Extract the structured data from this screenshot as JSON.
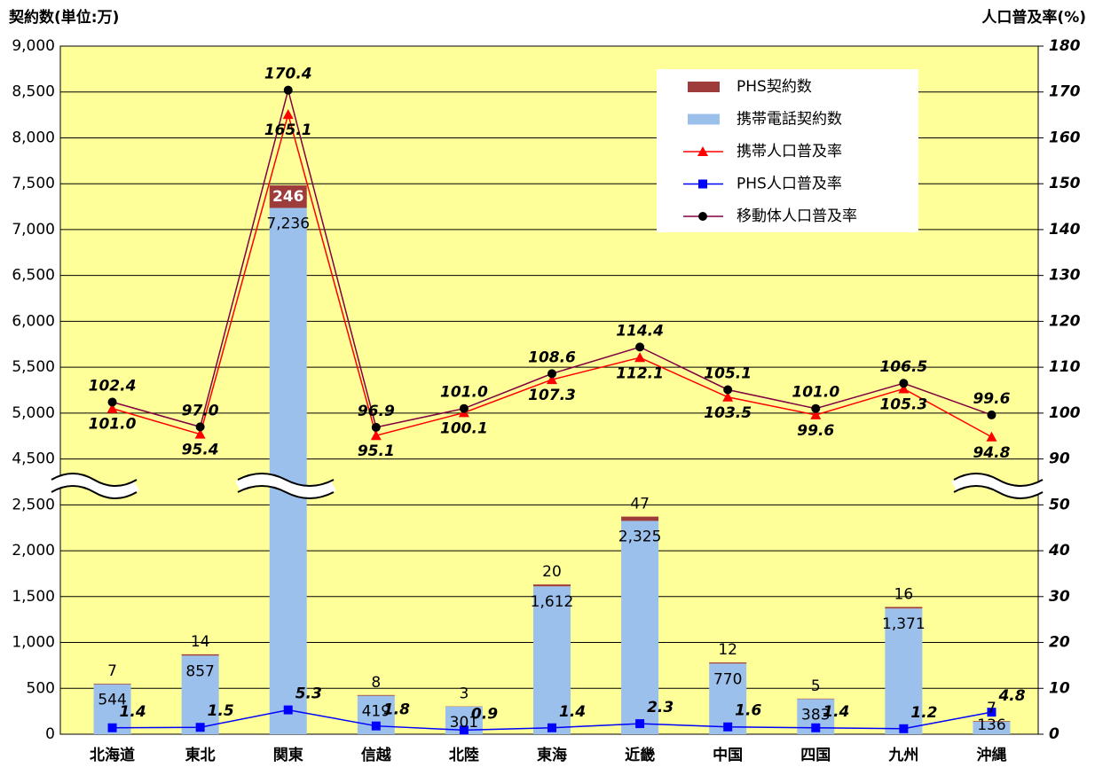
{
  "chart_data": {
    "type": "bar_line",
    "y_axis_title": "契約数(単位:万)",
    "y2_axis_title": "人口普及率(%)",
    "categories": [
      "北海道",
      "東北",
      "関東",
      "信越",
      "北陸",
      "東海",
      "近畿",
      "中国",
      "四国",
      "九州",
      "沖縄"
    ],
    "ylim": [
      0,
      9000
    ],
    "yticks": [
      0,
      500,
      {
        "value": 1000,
        "label": "1,000"
      },
      {
        "value": 1500,
        "label": "1,500"
      },
      {
        "value": 2000,
        "label": "2,000"
      },
      {
        "value": 2500,
        "label": "2,500"
      },
      {
        "value": 4500,
        "label": "4,500"
      },
      {
        "value": 5000,
        "label": "5,000"
      },
      {
        "value": 5500,
        "label": "5,500"
      },
      {
        "value": 6000,
        "label": "6,000"
      },
      {
        "value": 6500,
        "label": "6,500"
      },
      {
        "value": 7000,
        "label": "7,000"
      },
      {
        "value": 7500,
        "label": "7,500"
      },
      {
        "value": 8000,
        "label": "8,000"
      },
      {
        "value": 8500,
        "label": "8,500"
      },
      {
        "value": 9000,
        "label": "9,000"
      }
    ],
    "y_break": [
      2500,
      4500
    ],
    "y2lim": [
      0,
      180
    ],
    "y2ticks": [
      0,
      10,
      20,
      30,
      40,
      50,
      90,
      100,
      110,
      120,
      130,
      140,
      150,
      160,
      170,
      180
    ],
    "y2_break": [
      50,
      90
    ],
    "grid": true,
    "legend": "upper right",
    "series": [
      {
        "name": "PHS契約数",
        "kind": "bar",
        "stack": 1,
        "color": "#9e3b3b",
        "values": [
          7,
          14,
          246,
          8,
          3,
          20,
          47,
          12,
          5,
          16,
          7
        ]
      },
      {
        "name": "携帯電話契約数",
        "kind": "bar",
        "stack": 0,
        "color": "#9cc0ec",
        "values": [
          544,
          857,
          7236,
          419,
          301,
          1612,
          2325,
          770,
          383,
          1371,
          136
        ],
        "value_labels": [
          "544",
          "857",
          "7,236",
          "419",
          "301",
          "1,612",
          "2,325",
          "770",
          "383",
          "1,371",
          "136"
        ]
      },
      {
        "name": "携帯人口普及率",
        "kind": "line",
        "axis": "y2",
        "marker": "triangle",
        "color": "#ff0000",
        "values": [
          101.0,
          95.4,
          165.1,
          95.1,
          100.1,
          107.3,
          112.1,
          103.5,
          99.6,
          105.3,
          94.8
        ],
        "value_labels": [
          "101.0",
          "95.4",
          "165.1",
          "95.1",
          "100.1",
          "107.3",
          "112.1",
          "103.5",
          "99.6",
          "105.3",
          "94.8"
        ]
      },
      {
        "name": "PHS人口普及率",
        "kind": "line",
        "axis": "y2",
        "marker": "square",
        "color": "#0000ff",
        "values": [
          1.4,
          1.5,
          5.3,
          1.8,
          0.9,
          1.4,
          2.3,
          1.6,
          1.4,
          1.2,
          4.8
        ]
      },
      {
        "name": "移動体人口普及率",
        "kind": "line",
        "axis": "y2",
        "marker": "circle",
        "color": "#800040",
        "values": [
          102.4,
          97.0,
          170.4,
          96.9,
          101.0,
          108.6,
          114.4,
          105.1,
          101.0,
          106.5,
          99.6
        ],
        "value_labels": [
          "102.4",
          "97.0",
          "170.4",
          "96.9",
          "101.0",
          "108.6",
          "114.4",
          "105.1",
          "101.0",
          "106.5",
          "99.6"
        ]
      }
    ]
  }
}
